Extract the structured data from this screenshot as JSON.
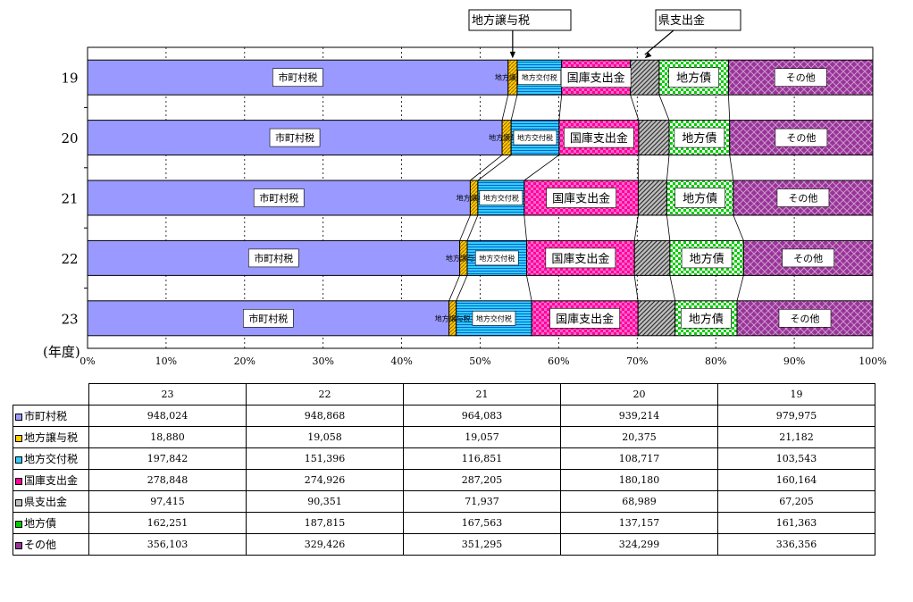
{
  "chart_data": {
    "type": "bar",
    "orientation": "horizontal",
    "stacked": "percent",
    "categories": [
      "19",
      "20",
      "21",
      "22",
      "23"
    ],
    "category_axis_label": "(年度)",
    "x_ticks": [
      "0%",
      "10%",
      "20%",
      "30%",
      "40%",
      "50%",
      "60%",
      "70%",
      "80%",
      "90%",
      "100%"
    ],
    "xlim": [
      0,
      100
    ],
    "grid": "vertical-dashed",
    "series": [
      {
        "name": "市町村税",
        "color": "#9999ff",
        "values": [
          979975,
          939214,
          964083,
          948868,
          948024
        ]
      },
      {
        "name": "地方譲与税",
        "color": "#ffcc00",
        "values": [
          21182,
          20375,
          19057,
          19058,
          18880
        ]
      },
      {
        "name": "地方交付税",
        "color": "#33ccff",
        "values": [
          103543,
          108717,
          116851,
          151396,
          197842
        ]
      },
      {
        "name": "国庫支出金",
        "color": "#ff0099",
        "values": [
          160164,
          180180,
          287205,
          274926,
          278848
        ]
      },
      {
        "name": "県支出金",
        "color": "#c0c0c0",
        "values": [
          67205,
          68989,
          71937,
          90351,
          97415
        ]
      },
      {
        "name": "地方債",
        "color": "#00cc00",
        "values": [
          161363,
          137157,
          167563,
          187815,
          162251
        ]
      },
      {
        "name": "その他",
        "color": "#993399",
        "values": [
          336356,
          324299,
          351295,
          329426,
          356103
        ]
      }
    ],
    "callouts": [
      "地方譲与税",
      "県支出金"
    ]
  },
  "table": {
    "columns": [
      "23",
      "22",
      "21",
      "20",
      "19"
    ],
    "rows": [
      {
        "label": "市町村税",
        "color": "#9999ff",
        "values": [
          "948,024",
          "948,868",
          "964,083",
          "939,214",
          "979,975"
        ]
      },
      {
        "label": "地方譲与税",
        "color": "#ffcc00",
        "values": [
          "18,880",
          "19,058",
          "19,057",
          "20,375",
          "21,182"
        ]
      },
      {
        "label": "地方交付税",
        "color": "#33ccff",
        "values": [
          "197,842",
          "151,396",
          "116,851",
          "108,717",
          "103,543"
        ]
      },
      {
        "label": "国庫支出金",
        "color": "#ff0099",
        "values": [
          "278,848",
          "274,926",
          "287,205",
          "180,180",
          "160,164"
        ]
      },
      {
        "label": "県支出金",
        "color": "#c0c0c0",
        "values": [
          "97,415",
          "90,351",
          "71,937",
          "68,989",
          "67,205"
        ]
      },
      {
        "label": "地方債",
        "color": "#00cc00",
        "values": [
          "162,251",
          "187,815",
          "167,563",
          "137,157",
          "161,363"
        ]
      },
      {
        "label": "その他",
        "color": "#993399",
        "values": [
          "356,103",
          "329,426",
          "351,295",
          "324,299",
          "336,356"
        ]
      }
    ]
  }
}
